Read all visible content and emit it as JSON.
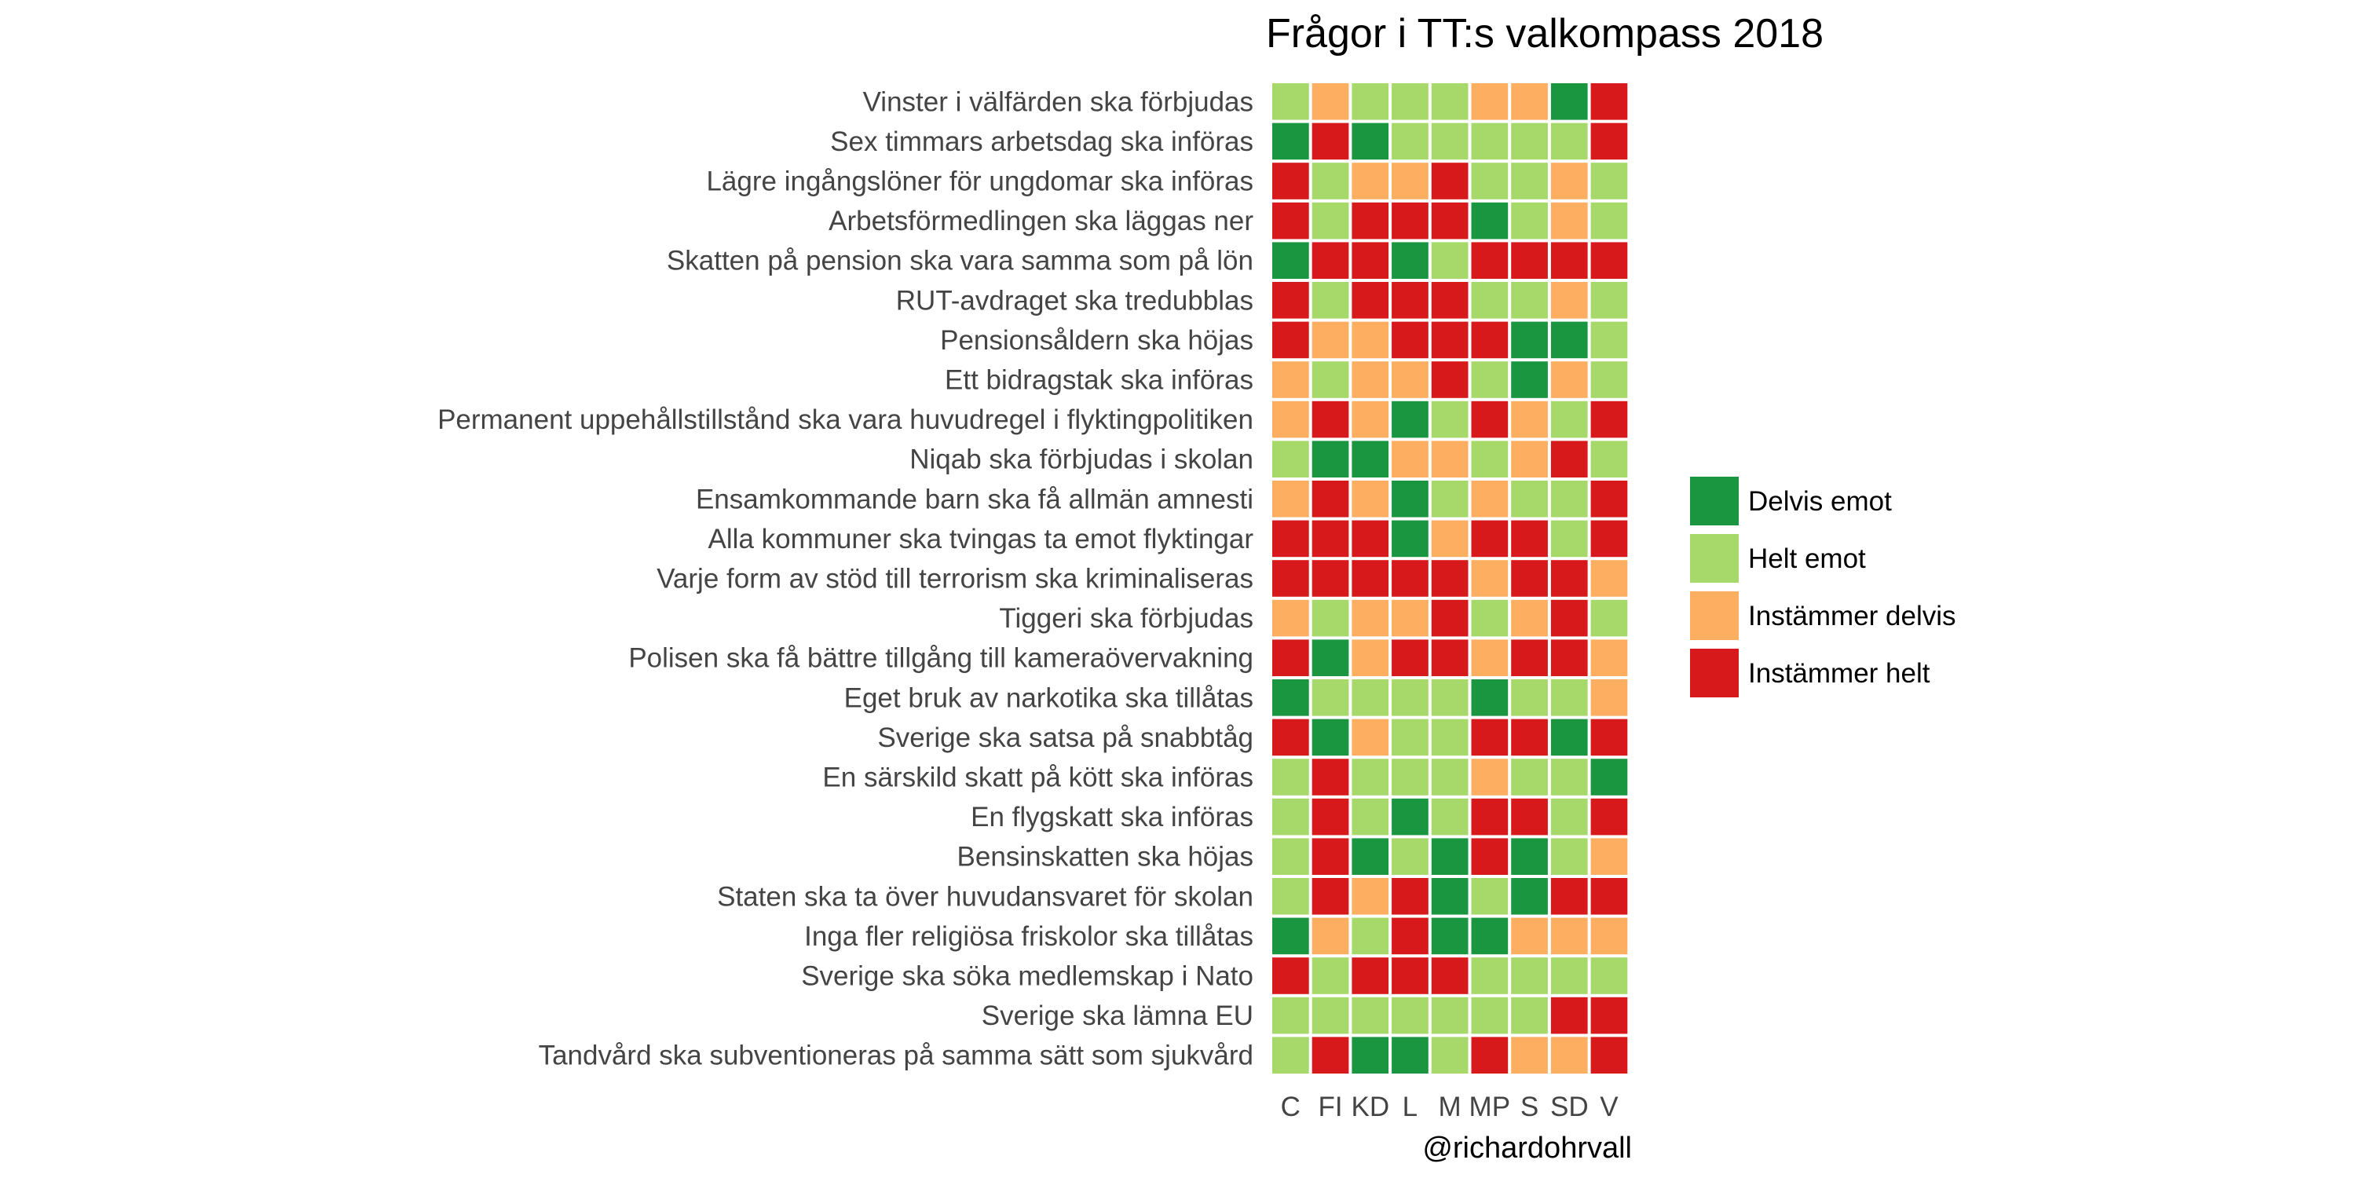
{
  "chart_data": {
    "type": "heatmap",
    "title": "Frågor i TT:s valkompass 2018",
    "caption": "@richardohrvall",
    "xlabel": "",
    "ylabel": "",
    "columns": [
      "C",
      "FI",
      "KD",
      "L",
      "M",
      "MP",
      "S",
      "SD",
      "V"
    ],
    "rows": [
      "Vinster i välfärden ska förbjudas",
      "Sex timmars arbetsdag ska införas",
      "Lägre ingångslöner för ungdomar ska införas",
      "Arbetsförmedlingen ska läggas ner",
      "Skatten på pension ska vara samma som på lön",
      "RUT-avdraget ska tredubblas",
      "Pensionsåldern ska höjas",
      "Ett bidragstak ska införas",
      "Permanent uppehållstillstånd ska vara huvudregel i flyktingpolitiken",
      "Niqab ska förbjudas i skolan",
      "Ensamkommande barn ska få allmän amnesti",
      "Alla kommuner ska tvingas ta emot flyktingar",
      "Varje form av stöd till terrorism ska kriminaliseras",
      "Tiggeri ska förbjudas",
      "Polisen ska få bättre tillgång till kameraövervakning",
      "Eget bruk av narkotika ska tillåtas",
      "Sverige ska satsa på snabbtåg",
      "En särskild skatt på kött ska införas",
      "En flygskatt ska införas",
      "Bensinskatten ska höjas",
      "Staten ska ta över huvudansvaret för skolan",
      "Inga fler religiösa friskolor ska tillåtas",
      "Sverige ska söka medlemskap i Nato",
      "Sverige ska lämna EU",
      "Tandvård ska subventioneras på samma sätt som sjukvård"
    ],
    "categories": [
      "Delvis emot",
      "Helt emot",
      "Instämmer delvis",
      "Instämmer helt"
    ],
    "colors": [
      "#1a9641",
      "#a6d96a",
      "#fdae61",
      "#d7191c"
    ],
    "legend_position": "right",
    "grid": false,
    "values": [
      [
        1,
        2,
        1,
        1,
        1,
        2,
        2,
        0,
        3
      ],
      [
        0,
        3,
        0,
        1,
        1,
        1,
        1,
        1,
        3
      ],
      [
        3,
        1,
        2,
        2,
        3,
        1,
        1,
        2,
        1
      ],
      [
        3,
        1,
        3,
        3,
        3,
        0,
        1,
        2,
        1
      ],
      [
        0,
        3,
        3,
        0,
        1,
        3,
        3,
        3,
        3
      ],
      [
        3,
        1,
        3,
        3,
        3,
        1,
        1,
        2,
        1
      ],
      [
        3,
        2,
        2,
        3,
        3,
        3,
        0,
        0,
        1
      ],
      [
        2,
        1,
        2,
        2,
        3,
        1,
        0,
        2,
        1
      ],
      [
        2,
        3,
        2,
        0,
        1,
        3,
        2,
        1,
        3
      ],
      [
        1,
        0,
        0,
        2,
        2,
        1,
        2,
        3,
        1
      ],
      [
        2,
        3,
        2,
        0,
        1,
        2,
        1,
        1,
        3
      ],
      [
        3,
        3,
        3,
        0,
        2,
        3,
        3,
        1,
        3
      ],
      [
        3,
        3,
        3,
        3,
        3,
        2,
        3,
        3,
        2
      ],
      [
        2,
        1,
        2,
        2,
        3,
        1,
        2,
        3,
        1
      ],
      [
        3,
        0,
        2,
        3,
        3,
        2,
        3,
        3,
        2
      ],
      [
        0,
        1,
        1,
        1,
        1,
        0,
        1,
        1,
        2
      ],
      [
        3,
        0,
        2,
        1,
        1,
        3,
        3,
        0,
        3
      ],
      [
        1,
        3,
        1,
        1,
        1,
        2,
        1,
        1,
        0
      ],
      [
        1,
        3,
        1,
        0,
        1,
        3,
        3,
        1,
        3
      ],
      [
        1,
        3,
        0,
        1,
        0,
        3,
        0,
        1,
        2
      ],
      [
        1,
        3,
        2,
        3,
        0,
        1,
        0,
        3,
        3
      ],
      [
        0,
        2,
        1,
        3,
        0,
        0,
        2,
        2,
        2
      ],
      [
        3,
        1,
        3,
        3,
        3,
        1,
        1,
        1,
        1
      ],
      [
        1,
        1,
        1,
        1,
        1,
        1,
        1,
        3,
        3
      ],
      [
        1,
        3,
        0,
        0,
        1,
        3,
        2,
        2,
        3
      ]
    ]
  }
}
